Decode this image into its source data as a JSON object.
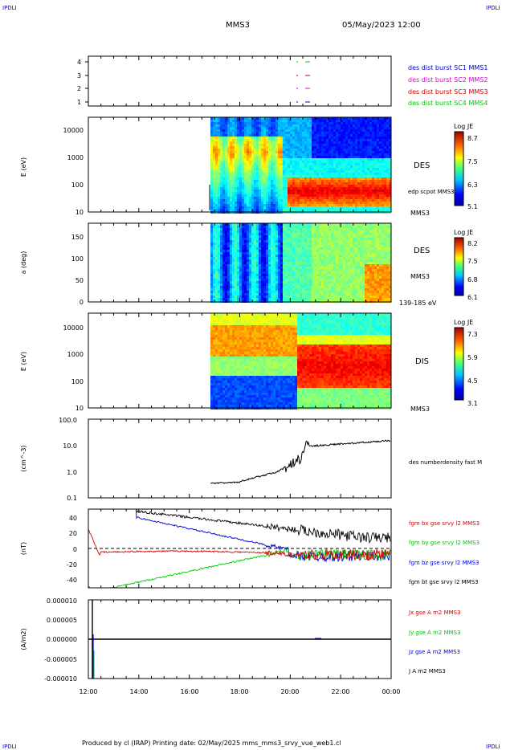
{
  "header": {
    "corner_left": "IPDLI",
    "corner_right": "IPDLI",
    "mission": "MMS3",
    "datetime": "05/May/2023 12:00"
  },
  "footer": {
    "text": "Produced by cl (IRAP)   Printing date: 02/May/2025   mms_mms3_srvy_vue_web1.cl",
    "corner_left": "IPDLI",
    "corner_right": "IPDLI"
  },
  "time_axis": {
    "ticks": [
      "12:00",
      "14:00",
      "16:00",
      "18:00",
      "20:00",
      "22:00",
      "00:00"
    ]
  },
  "colors": {
    "red": "#d40000",
    "green": "#00c800",
    "blue": "#0000d8",
    "magenta": "#e000e0",
    "black": "#000000"
  },
  "chart_data": [
    {
      "type": "scatter",
      "name": "burst",
      "yticks": [
        "4",
        "3",
        "2",
        "1"
      ],
      "legend": [
        {
          "text": "des dist burst SC1 MMS1",
          "color": "#0000d8"
        },
        {
          "text": "des dist burst SC2 MMS2",
          "color": "#e000e0"
        },
        {
          "text": "des dist burst SC3 MMS3",
          "color": "#d40000"
        },
        {
          "text": "des dist burst SC4 MMS4",
          "color": "#00c800"
        }
      ]
    },
    {
      "type": "heatmap",
      "name": "des-energy",
      "ylabel": "E (eV)",
      "yticks": [
        "10000",
        "1000",
        "100",
        "10"
      ],
      "label": "DES",
      "label2": "edp scpot MMS3",
      "sc": "MMS3",
      "colorbar": {
        "title": "Log JE",
        "ticks": [
          "8.7",
          "7.5",
          "6.3",
          "5.1"
        ]
      }
    },
    {
      "type": "heatmap",
      "name": "des-pitch",
      "ylabel": "a (deg)",
      "yticks": [
        "150",
        "100",
        "50",
        "0"
      ],
      "label": "DES",
      "sc": "MMS3",
      "range_label": "139-185 eV",
      "colorbar": {
        "title": "Log JE",
        "ticks": [
          "8.2",
          "7.5",
          "6.8",
          "6.1"
        ]
      }
    },
    {
      "type": "heatmap",
      "name": "dis-energy",
      "ylabel": "E (eV)",
      "yticks": [
        "10000",
        "1000",
        "100",
        "10"
      ],
      "label": "DIS",
      "sc": "MMS3",
      "colorbar": {
        "title": "Log JE",
        "ticks": [
          "7.3",
          "5.9",
          "4.5",
          "3.1"
        ]
      }
    },
    {
      "type": "line",
      "name": "density",
      "ylabel": "(cm^-3)",
      "yticks": [
        "100.0",
        "10.0",
        "1.0",
        "0.1"
      ],
      "legend": [
        {
          "text": "des numberdensity fast M",
          "color": "#000000"
        }
      ]
    },
    {
      "type": "line",
      "name": "magnetic-field",
      "ylabel": "(nT)",
      "yticks": [
        "40",
        "20",
        "0",
        "-20",
        "-40"
      ],
      "legend": [
        {
          "text": "fgm bx gse srvy l2 MMS3",
          "color": "#d40000"
        },
        {
          "text": "fgm by gse srvy l2 MMS3",
          "color": "#00c800"
        },
        {
          "text": "fgm bz gse srvy l2 MMS3",
          "color": "#0000d8"
        },
        {
          "text": "fgm bt gse srvy l2 MMS3",
          "color": "#000000"
        }
      ]
    },
    {
      "type": "line",
      "name": "current",
      "ylabel": "(A/m2)",
      "yticks": [
        "0.000010",
        "0.000005",
        "0.000000",
        "-0.000005",
        "-0.000010"
      ],
      "legend": [
        {
          "text": "Jx gse A m2 MMS3",
          "color": "#d40000"
        },
        {
          "text": "Jy gse A m2 MMS3",
          "color": "#00c800"
        },
        {
          "text": "Jz gse A m2 MMS3",
          "color": "#0000d8"
        },
        {
          "text": "J A m2 MMS3",
          "color": "#000000"
        }
      ]
    }
  ]
}
